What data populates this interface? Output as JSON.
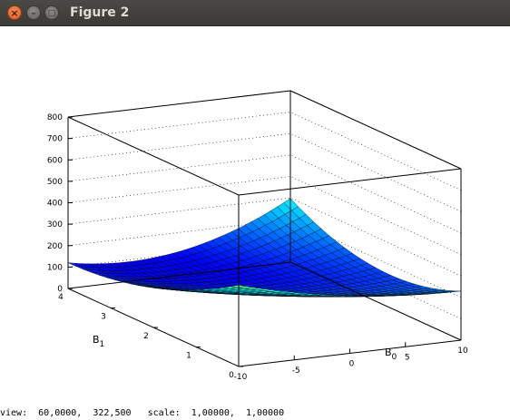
{
  "window": {
    "title": "Figure 2",
    "buttons": {
      "close": "×",
      "minimize": "–",
      "maximize": "□"
    }
  },
  "status": {
    "view_label": "view:",
    "view_value": "60,0000,  322,500",
    "scale_label": "scale:",
    "scale_value": "1,00000,  1,00000"
  },
  "chart_data": {
    "type": "surface",
    "x_axis": {
      "label": "B",
      "subscript": "0",
      "ticks": [
        "-10",
        "-5",
        "0",
        "5",
        "10"
      ],
      "range": [
        -10,
        10
      ]
    },
    "y_axis": {
      "label": "B",
      "subscript": "1",
      "ticks": [
        "0",
        "1",
        "2",
        "3",
        "4"
      ],
      "range": [
        0,
        4
      ]
    },
    "z_axis": {
      "ticks": [
        "0",
        "100",
        "200",
        "300",
        "400",
        "500",
        "600",
        "700",
        "800"
      ],
      "range": [
        0,
        800
      ]
    },
    "colormap": "jet",
    "colors": {
      "low": "#00008f",
      "mid": "#5fffa0",
      "high": "#800000"
    },
    "view": {
      "rot_x": 60,
      "rot_z": 322.5
    }
  }
}
